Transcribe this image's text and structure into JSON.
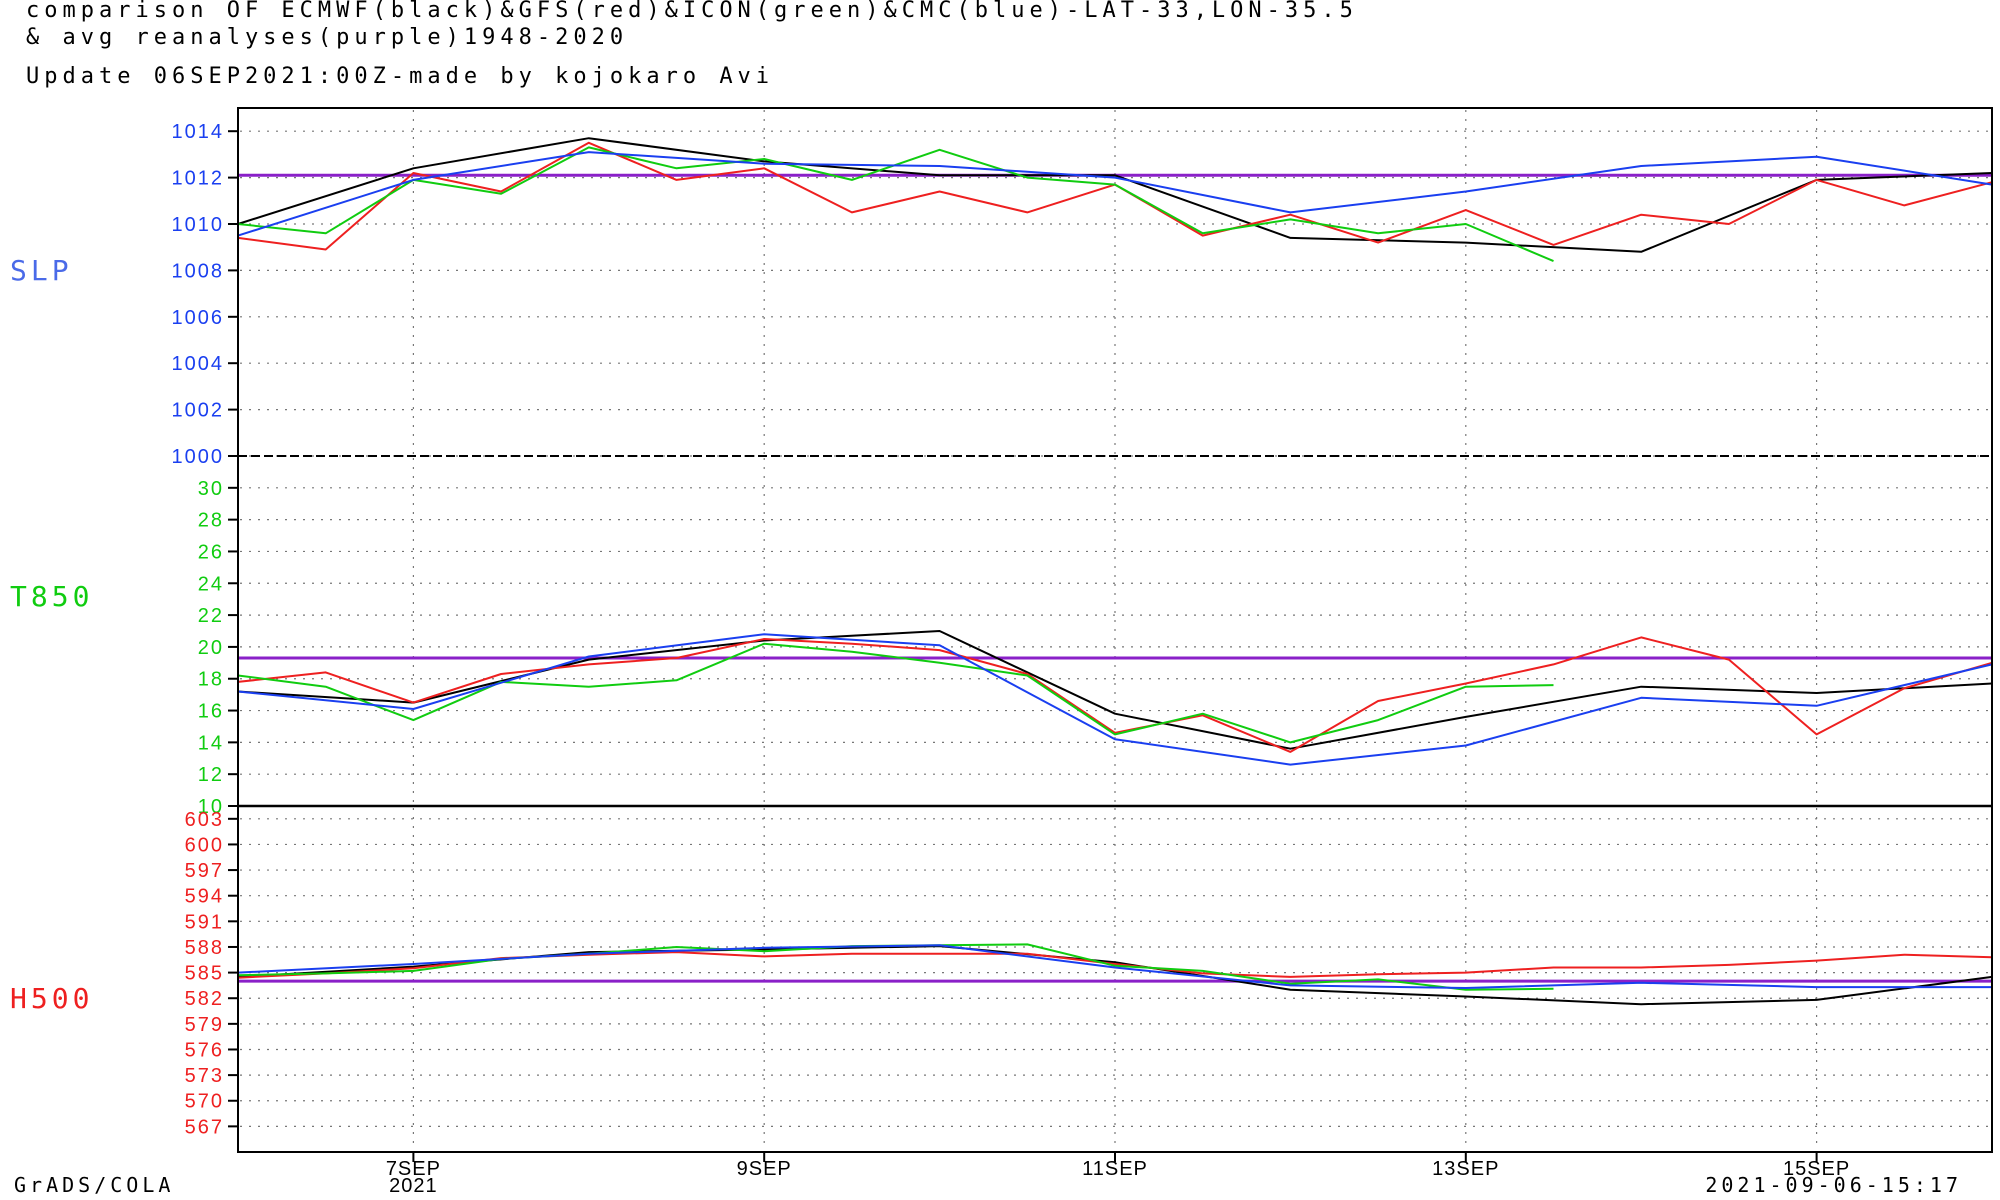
{
  "header": {
    "line1": "comparison OF ECMWF(black)&GFS(red)&ICON(green)&CMC(blue)-LAT-33,LON-35.5",
    "line2": "& avg reanalyses(purple)1948-2020",
    "line3": "Update  06SEP2021:00Z-made by kojokaro Avi"
  },
  "footer": {
    "left": "GrADS/COLA",
    "right": "2021-09-06-15:17"
  },
  "colors": {
    "ecmwf": "#000000",
    "gfs": "#ee2020",
    "icon": "#10cc10",
    "cmc": "#1a3ff0",
    "reanalysis": "#8a20c8"
  },
  "chart_data": [
    {
      "type": "line",
      "panel": "SLP",
      "label": "SLP",
      "label_color": "#4a6ae8",
      "tick_color": "#1a3ff0",
      "ylim": [
        1000,
        1015
      ],
      "yticks": [
        "1014",
        "1012",
        "1010",
        "1008",
        "1006",
        "1004",
        "1002",
        "1000"
      ],
      "xlim": [
        6.0,
        16.0
      ],
      "x_ticks": [
        "7SEP",
        "9SEP",
        "11SEP",
        "13SEP",
        "15SEP"
      ],
      "x_year": "2021",
      "reanalysis": 1012.1,
      "series": [
        {
          "key": "ecmwf",
          "x": [
            6.0,
            7.0,
            8.0,
            9.0,
            10.0,
            11.0,
            12.0,
            13.0,
            14.0,
            15.0,
            16.0
          ],
          "values": [
            1010.0,
            1012.4,
            1013.7,
            1012.7,
            1012.1,
            1012.1,
            1009.4,
            1009.2,
            1008.8,
            1011.9,
            1012.2
          ]
        },
        {
          "key": "gfs",
          "x": [
            6.0,
            6.5,
            7.0,
            7.5,
            8.0,
            8.5,
            9.0,
            9.5,
            10.0,
            10.5,
            11.0,
            11.5,
            12.0,
            12.5,
            13.0,
            13.5,
            14.0,
            14.5,
            15.0,
            15.5,
            16.0
          ],
          "values": [
            1009.4,
            1008.9,
            1012.2,
            1011.4,
            1013.5,
            1011.9,
            1012.4,
            1010.5,
            1011.4,
            1010.5,
            1011.7,
            1009.5,
            1010.4,
            1009.2,
            1010.6,
            1009.1,
            1010.4,
            1010.0,
            1011.9,
            1010.8,
            1011.8
          ]
        },
        {
          "key": "icon",
          "x": [
            6.0,
            6.5,
            7.0,
            7.5,
            8.0,
            8.5,
            9.0,
            9.5,
            10.0,
            10.5,
            11.0,
            11.5,
            12.0,
            12.5,
            13.0,
            13.5
          ],
          "values": [
            1010.0,
            1009.6,
            1011.9,
            1011.3,
            1013.3,
            1012.4,
            1012.8,
            1011.9,
            1013.2,
            1012.0,
            1011.7,
            1009.6,
            1010.2,
            1009.6,
            1010.0,
            1008.4
          ]
        },
        {
          "key": "cmc",
          "x": [
            6.0,
            7.0,
            8.0,
            9.0,
            10.0,
            11.0,
            12.0,
            13.0,
            14.0,
            15.0,
            16.0
          ],
          "values": [
            1009.5,
            1011.9,
            1013.1,
            1012.6,
            1012.5,
            1012.0,
            1010.5,
            1011.4,
            1012.5,
            1012.9,
            1011.7
          ]
        }
      ]
    },
    {
      "type": "line",
      "panel": "T850",
      "label": "T850",
      "label_color": "#10cc10",
      "tick_color": "#10cc10",
      "ylim": [
        10,
        32
      ],
      "yticks": [
        "30",
        "28",
        "26",
        "24",
        "22",
        "20",
        "18",
        "16",
        "14",
        "12",
        "10"
      ],
      "xlim": [
        6.0,
        16.0
      ],
      "reanalysis": 19.3,
      "series": [
        {
          "key": "ecmwf",
          "x": [
            6.0,
            7.0,
            8.0,
            9.0,
            10.0,
            11.0,
            12.0,
            13.0,
            14.0,
            15.0,
            16.0
          ],
          "values": [
            17.2,
            16.5,
            19.2,
            20.4,
            21.0,
            15.8,
            13.6,
            15.6,
            17.5,
            17.1,
            17.7
          ]
        },
        {
          "key": "gfs",
          "x": [
            6.0,
            6.5,
            7.0,
            7.5,
            8.0,
            8.5,
            9.0,
            9.5,
            10.0,
            10.5,
            11.0,
            11.5,
            12.0,
            12.5,
            13.0,
            13.5,
            14.0,
            14.5,
            15.0,
            15.5,
            16.0
          ],
          "values": [
            17.8,
            18.4,
            16.5,
            18.3,
            18.9,
            19.3,
            20.5,
            20.2,
            19.8,
            18.3,
            14.6,
            15.7,
            13.4,
            16.6,
            17.7,
            18.9,
            20.6,
            19.2,
            14.5,
            17.4,
            19.0
          ]
        },
        {
          "key": "icon",
          "x": [
            6.0,
            6.5,
            7.0,
            7.5,
            8.0,
            8.5,
            9.0,
            9.5,
            10.0,
            10.5,
            11.0,
            11.5,
            12.0,
            12.5,
            13.0,
            13.5
          ],
          "values": [
            18.2,
            17.5,
            15.4,
            17.8,
            17.5,
            17.9,
            20.2,
            19.7,
            19.0,
            18.2,
            14.5,
            15.8,
            14.0,
            15.4,
            17.5,
            17.6
          ]
        },
        {
          "key": "cmc",
          "x": [
            6.0,
            7.0,
            8.0,
            9.0,
            10.0,
            11.0,
            12.0,
            13.0,
            14.0,
            15.0,
            16.0
          ],
          "values": [
            17.2,
            16.1,
            19.4,
            20.8,
            20.1,
            14.2,
            12.6,
            13.8,
            16.8,
            16.3,
            18.9
          ]
        }
      ]
    },
    {
      "type": "line",
      "panel": "H500",
      "label": "H500",
      "label_color": "#ee2020",
      "tick_color": "#ee2020",
      "ylim": [
        564,
        604.5
      ],
      "yticks": [
        "603",
        "600",
        "597",
        "594",
        "591",
        "588",
        "585",
        "582",
        "579",
        "576",
        "573",
        "570",
        "567"
      ],
      "xlim": [
        6.0,
        16.0
      ],
      "reanalysis": 584.0,
      "series": [
        {
          "key": "ecmwf",
          "x": [
            6.0,
            7.0,
            8.0,
            9.0,
            10.0,
            11.0,
            12.0,
            13.0,
            14.0,
            15.0,
            16.0
          ],
          "values": [
            584.5,
            585.7,
            587.4,
            587.7,
            588.1,
            586.2,
            583.0,
            582.2,
            581.3,
            581.8,
            584.5
          ]
        },
        {
          "key": "gfs",
          "x": [
            6.0,
            6.5,
            7.0,
            7.5,
            8.0,
            8.5,
            9.0,
            9.5,
            10.0,
            10.5,
            11.0,
            11.5,
            12.0,
            12.5,
            13.0,
            13.5,
            14.0,
            14.5,
            15.0,
            15.5,
            16.0
          ],
          "values": [
            584.4,
            584.9,
            585.5,
            586.7,
            587.1,
            587.4,
            586.9,
            587.2,
            587.2,
            587.2,
            586.0,
            584.9,
            584.5,
            584.8,
            585.0,
            585.6,
            585.6,
            585.9,
            586.4,
            587.1,
            586.8
          ]
        },
        {
          "key": "icon",
          "x": [
            6.0,
            6.5,
            7.0,
            7.5,
            8.0,
            8.5,
            9.0,
            9.5,
            10.0,
            10.5,
            11.0,
            11.5,
            12.0,
            12.5,
            13.0,
            13.5
          ],
          "values": [
            584.7,
            584.9,
            585.2,
            586.6,
            587.2,
            588.0,
            587.5,
            588.1,
            588.2,
            588.3,
            585.8,
            585.2,
            583.7,
            584.2,
            583.0,
            583.1
          ]
        },
        {
          "key": "cmc",
          "x": [
            6.0,
            7.0,
            8.0,
            9.0,
            10.0,
            11.0,
            12.0,
            13.0,
            14.0,
            15.0,
            16.0
          ],
          "values": [
            585.0,
            586.0,
            587.2,
            587.9,
            588.2,
            585.6,
            583.5,
            583.2,
            583.8,
            583.3,
            583.3
          ]
        }
      ]
    }
  ]
}
